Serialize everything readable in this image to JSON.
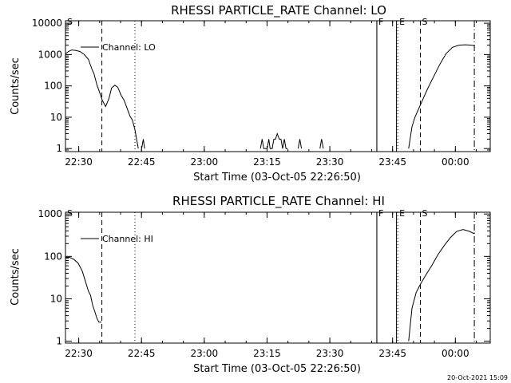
{
  "footer": {
    "timestamp": "20-Oct-2021 15:09"
  },
  "marker_labels": [
    "S",
    "F",
    "E",
    "S"
  ],
  "chart_data": [
    {
      "type": "line",
      "title": "RHESSI PARTICLE_RATE Channel: LO",
      "xlabel": "Start Time (03-Oct-05 22:26:50)",
      "ylabel": "Counts/sec",
      "x_unit": "minutes after 22:26:50",
      "x_ticks": [
        "22:30",
        "22:45",
        "23:00",
        "23:15",
        "23:30",
        "23:45",
        "00:00"
      ],
      "y_ticks": [
        "1",
        "10",
        "100",
        "1000",
        "10000"
      ],
      "y_scale": "log",
      "xlim": [
        0,
        101.5
      ],
      "ylim": [
        0.8,
        12000
      ],
      "grid": false,
      "legend": {
        "position": "top-left",
        "label": "Channel: LO"
      },
      "series": [
        {
          "name": "Channel: LO",
          "segments": [
            [
              [
                0,
                1050
              ],
              [
                0.7,
                1250
              ],
              [
                1.5,
                1400
              ],
              [
                2.5,
                1350
              ],
              [
                3.5,
                1250
              ],
              [
                4.5,
                1000
              ],
              [
                5.5,
                700
              ],
              [
                6.3,
                350
              ],
              [
                6.8,
                250
              ],
              [
                7.5,
                110
              ],
              [
                8.2,
                60
              ],
              [
                8.8,
                35
              ],
              [
                9.6,
                22
              ],
              [
                10.4,
                40
              ],
              [
                11.0,
                85
              ],
              [
                11.8,
                105
              ],
              [
                12.5,
                90
              ],
              [
                13.3,
                50
              ],
              [
                14.0,
                35
              ],
              [
                14.8,
                18
              ],
              [
                15.4,
                11
              ],
              [
                16.0,
                8
              ],
              [
                16.6,
                4
              ],
              [
                17.0,
                2
              ],
              [
                17.4,
                1
              ]
            ],
            [
              [
                18.2,
                1
              ],
              [
                18.6,
                2
              ],
              [
                18.9,
                1
              ]
            ],
            [
              [
                46.6,
                1
              ],
              [
                47.0,
                2
              ],
              [
                47.4,
                1
              ],
              [
                48.2,
                1
              ],
              [
                48.6,
                2
              ],
              [
                48.9,
                1
              ],
              [
                49.4,
                1
              ],
              [
                49.8,
                2
              ],
              [
                50.2,
                2
              ],
              [
                50.6,
                3
              ],
              [
                51.1,
                2
              ],
              [
                51.5,
                2
              ],
              [
                51.9,
                1
              ],
              [
                52.3,
                2
              ],
              [
                52.7,
                1
              ],
              [
                53.1,
                1
              ]
            ],
            [
              [
                55.6,
                1
              ],
              [
                56.0,
                2
              ],
              [
                56.4,
                1
              ]
            ],
            [
              [
                60.8,
                1
              ],
              [
                61.2,
                2
              ],
              [
                61.6,
                1
              ]
            ],
            [
              [
                82.0,
                1
              ],
              [
                82.8,
                5
              ],
              [
                83.5,
                10
              ],
              [
                84.5,
                20
              ],
              [
                85.5,
                40
              ],
              [
                86.5,
                80
              ],
              [
                88.0,
                200
              ],
              [
                89.5,
                500
              ],
              [
                91.0,
                1100
              ],
              [
                92.5,
                1700
              ],
              [
                94.0,
                2000
              ],
              [
                95.5,
                2050
              ],
              [
                97.0,
                2000
              ],
              [
                97.8,
                1900
              ]
            ]
          ]
        }
      ],
      "markers": [
        {
          "label": "S",
          "x": 0,
          "style": "dash-dot"
        },
        {
          "label": "",
          "x": 8.7,
          "style": "dashed"
        },
        {
          "label": "",
          "x": 16.6,
          "style": "dotted"
        },
        {
          "label": "F",
          "x": 74.4,
          "style": "solid"
        },
        {
          "label": "E",
          "x": 79.4,
          "style": "dotted"
        },
        {
          "label": "S",
          "x": 84.8,
          "style": "dashed"
        },
        {
          "label": "",
          "x": 97.7,
          "style": "dash-dot"
        }
      ],
      "marker_solid_lines_x": [
        74.4,
        79.1
      ]
    },
    {
      "type": "line",
      "title": "RHESSI PARTICLE_RATE Channel: HI",
      "xlabel": "Start Time (03-Oct-05 22:26:50)",
      "ylabel": "Counts/sec",
      "x_unit": "minutes after 22:26:50",
      "x_ticks": [
        "22:30",
        "22:45",
        "23:00",
        "23:15",
        "23:30",
        "23:45",
        "00:00"
      ],
      "y_ticks": [
        "1",
        "10",
        "100",
        "1000"
      ],
      "y_scale": "log",
      "xlim": [
        0,
        101.5
      ],
      "ylim": [
        0.9,
        1100
      ],
      "grid": false,
      "legend": {
        "position": "top-left",
        "label": "Channel: HI"
      },
      "series": [
        {
          "name": "Channel: HI",
          "segments": [
            [
              [
                0,
                95
              ],
              [
                1.0,
                95
              ],
              [
                2.0,
                85
              ],
              [
                3.0,
                70
              ],
              [
                4.0,
                45
              ],
              [
                4.8,
                25
              ],
              [
                5.5,
                15
              ],
              [
                6.0,
                12
              ],
              [
                6.5,
                7
              ],
              [
                7.0,
                5
              ],
              [
                7.5,
                3.5
              ],
              [
                8.0,
                2.8
              ],
              [
                8.6,
                2.8
              ]
            ],
            [
              [
                82.0,
                1
              ],
              [
                82.8,
                6
              ],
              [
                83.8,
                14
              ],
              [
                84.8,
                22
              ],
              [
                86.0,
                35
              ],
              [
                87.5,
                60
              ],
              [
                89.0,
                110
              ],
              [
                90.5,
                180
              ],
              [
                92.0,
                280
              ],
              [
                93.5,
                390
              ],
              [
                95.0,
                430
              ],
              [
                96.5,
                390
              ],
              [
                97.5,
                350
              ],
              [
                97.8,
                360
              ]
            ]
          ]
        }
      ],
      "markers": [
        {
          "label": "S",
          "x": 0,
          "style": "dash-dot"
        },
        {
          "label": "",
          "x": 8.7,
          "style": "dashed"
        },
        {
          "label": "",
          "x": 16.6,
          "style": "dotted"
        },
        {
          "label": "F",
          "x": 74.4,
          "style": "solid"
        },
        {
          "label": "E",
          "x": 79.4,
          "style": "dotted"
        },
        {
          "label": "S",
          "x": 84.8,
          "style": "dashed"
        },
        {
          "label": "",
          "x": 97.7,
          "style": "dash-dot"
        }
      ],
      "marker_solid_lines_x": [
        74.4,
        79.1
      ]
    }
  ]
}
